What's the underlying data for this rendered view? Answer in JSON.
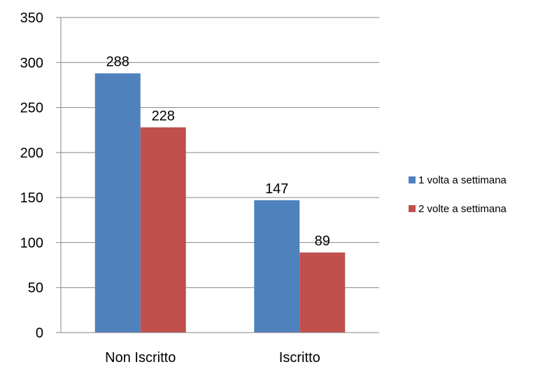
{
  "chart_data": {
    "type": "bar",
    "categories": [
      "Non Iscritto",
      "Iscritto"
    ],
    "series": [
      {
        "name": "1 volta a settimana",
        "color": "#4F81BD",
        "values": [
          288,
          147
        ]
      },
      {
        "name": "2 volte a settimana",
        "color": "#C0504D",
        "values": [
          228,
          89
        ]
      }
    ],
    "ylim": [
      0,
      350
    ],
    "yticks": [
      "0",
      "50",
      "100",
      "150",
      "200",
      "250",
      "300",
      "350"
    ],
    "grid": true,
    "legend_position": "right"
  }
}
